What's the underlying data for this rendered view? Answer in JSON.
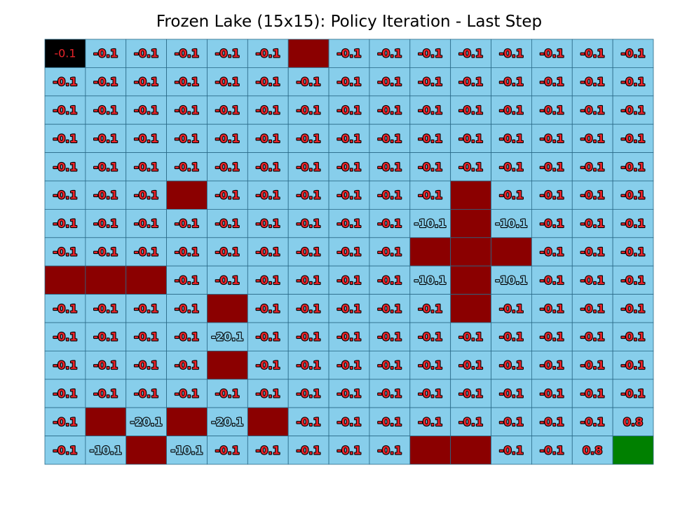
{
  "chart_data": {
    "type": "heatmap",
    "title": "Frozen Lake (15x15): Policy Iteration - Last Step",
    "colors": {
      "frozen": "#87ceeb",
      "hole": "#8b0000",
      "goal": "#008000",
      "current": "#000000",
      "grid_line": "#2a6a88",
      "value_fill_default": "#e8242a",
      "value_stroke_default": "#000000",
      "value_fill_negative_large": "#87ceeb",
      "value_stroke_negative_large": "#000000",
      "value_fill_on_black": "#e8242a"
    },
    "cells": [
      [
        "C",
        "-0.1",
        "-0.1",
        "-0.1",
        "-0.1",
        "-0.1",
        "H",
        "-0.1",
        "-0.1",
        "-0.1",
        "-0.1",
        "-0.1",
        "-0.1",
        "-0.1",
        "-0.1"
      ],
      [
        "-0.1",
        "-0.1",
        "-0.1",
        "-0.1",
        "-0.1",
        "-0.1",
        "-0.1",
        "-0.1",
        "-0.1",
        "-0.1",
        "-0.1",
        "-0.1",
        "-0.1",
        "-0.1",
        "-0.1"
      ],
      [
        "-0.1",
        "-0.1",
        "-0.1",
        "-0.1",
        "-0.1",
        "-0.1",
        "-0.1",
        "-0.1",
        "-0.1",
        "-0.1",
        "-0.1",
        "-0.1",
        "-0.1",
        "-0.1",
        "-0.1"
      ],
      [
        "-0.1",
        "-0.1",
        "-0.1",
        "-0.1",
        "-0.1",
        "-0.1",
        "-0.1",
        "-0.1",
        "-0.1",
        "-0.1",
        "-0.1",
        "-0.1",
        "-0.1",
        "-0.1",
        "-0.1"
      ],
      [
        "-0.1",
        "-0.1",
        "-0.1",
        "-0.1",
        "-0.1",
        "-0.1",
        "-0.1",
        "-0.1",
        "-0.1",
        "-0.1",
        "-0.1",
        "-0.1",
        "-0.1",
        "-0.1",
        "-0.1"
      ],
      [
        "-0.1",
        "-0.1",
        "-0.1",
        "H",
        "-0.1",
        "-0.1",
        "-0.1",
        "-0.1",
        "-0.1",
        "-0.1",
        "H",
        "-0.1",
        "-0.1",
        "-0.1",
        "-0.1"
      ],
      [
        "-0.1",
        "-0.1",
        "-0.1",
        "-0.1",
        "-0.1",
        "-0.1",
        "-0.1",
        "-0.1",
        "-0.1",
        "-10.1",
        "H",
        "-10.1",
        "-0.1",
        "-0.1",
        "-0.1"
      ],
      [
        "-0.1",
        "-0.1",
        "-0.1",
        "-0.1",
        "-0.1",
        "-0.1",
        "-0.1",
        "-0.1",
        "-0.1",
        "H",
        "H",
        "H",
        "-0.1",
        "-0.1",
        "-0.1"
      ],
      [
        "H",
        "H",
        "H",
        "-0.1",
        "-0.1",
        "-0.1",
        "-0.1",
        "-0.1",
        "-0.1",
        "-10.1",
        "H",
        "-10.1",
        "-0.1",
        "-0.1",
        "-0.1"
      ],
      [
        "-0.1",
        "-0.1",
        "-0.1",
        "-0.1",
        "H",
        "-0.1",
        "-0.1",
        "-0.1",
        "-0.1",
        "-0.1",
        "H",
        "-0.1",
        "-0.1",
        "-0.1",
        "-0.1"
      ],
      [
        "-0.1",
        "-0.1",
        "-0.1",
        "-0.1",
        "-20.1",
        "-0.1",
        "-0.1",
        "-0.1",
        "-0.1",
        "-0.1",
        "-0.1",
        "-0.1",
        "-0.1",
        "-0.1",
        "-0.1"
      ],
      [
        "-0.1",
        "-0.1",
        "-0.1",
        "-0.1",
        "H",
        "-0.1",
        "-0.1",
        "-0.1",
        "-0.1",
        "-0.1",
        "-0.1",
        "-0.1",
        "-0.1",
        "-0.1",
        "-0.1"
      ],
      [
        "-0.1",
        "-0.1",
        "-0.1",
        "-0.1",
        "-0.1",
        "-0.1",
        "-0.1",
        "-0.1",
        "-0.1",
        "-0.1",
        "-0.1",
        "-0.1",
        "-0.1",
        "-0.1",
        "-0.1"
      ],
      [
        "-0.1",
        "H",
        "-20.1",
        "H",
        "-20.1",
        "H",
        "-0.1",
        "-0.1",
        "-0.1",
        "-0.1",
        "-0.1",
        "-0.1",
        "-0.1",
        "-0.1",
        "0.8"
      ],
      [
        "-0.1",
        "-10.1",
        "H",
        "-10.1",
        "-0.1",
        "-0.1",
        "-0.1",
        "-0.1",
        "-0.1",
        "H",
        "H",
        "-0.1",
        "-0.1",
        "0.8",
        "G"
      ]
    ],
    "current_cell_value": "-0.1",
    "legend": "none",
    "grid": true
  }
}
